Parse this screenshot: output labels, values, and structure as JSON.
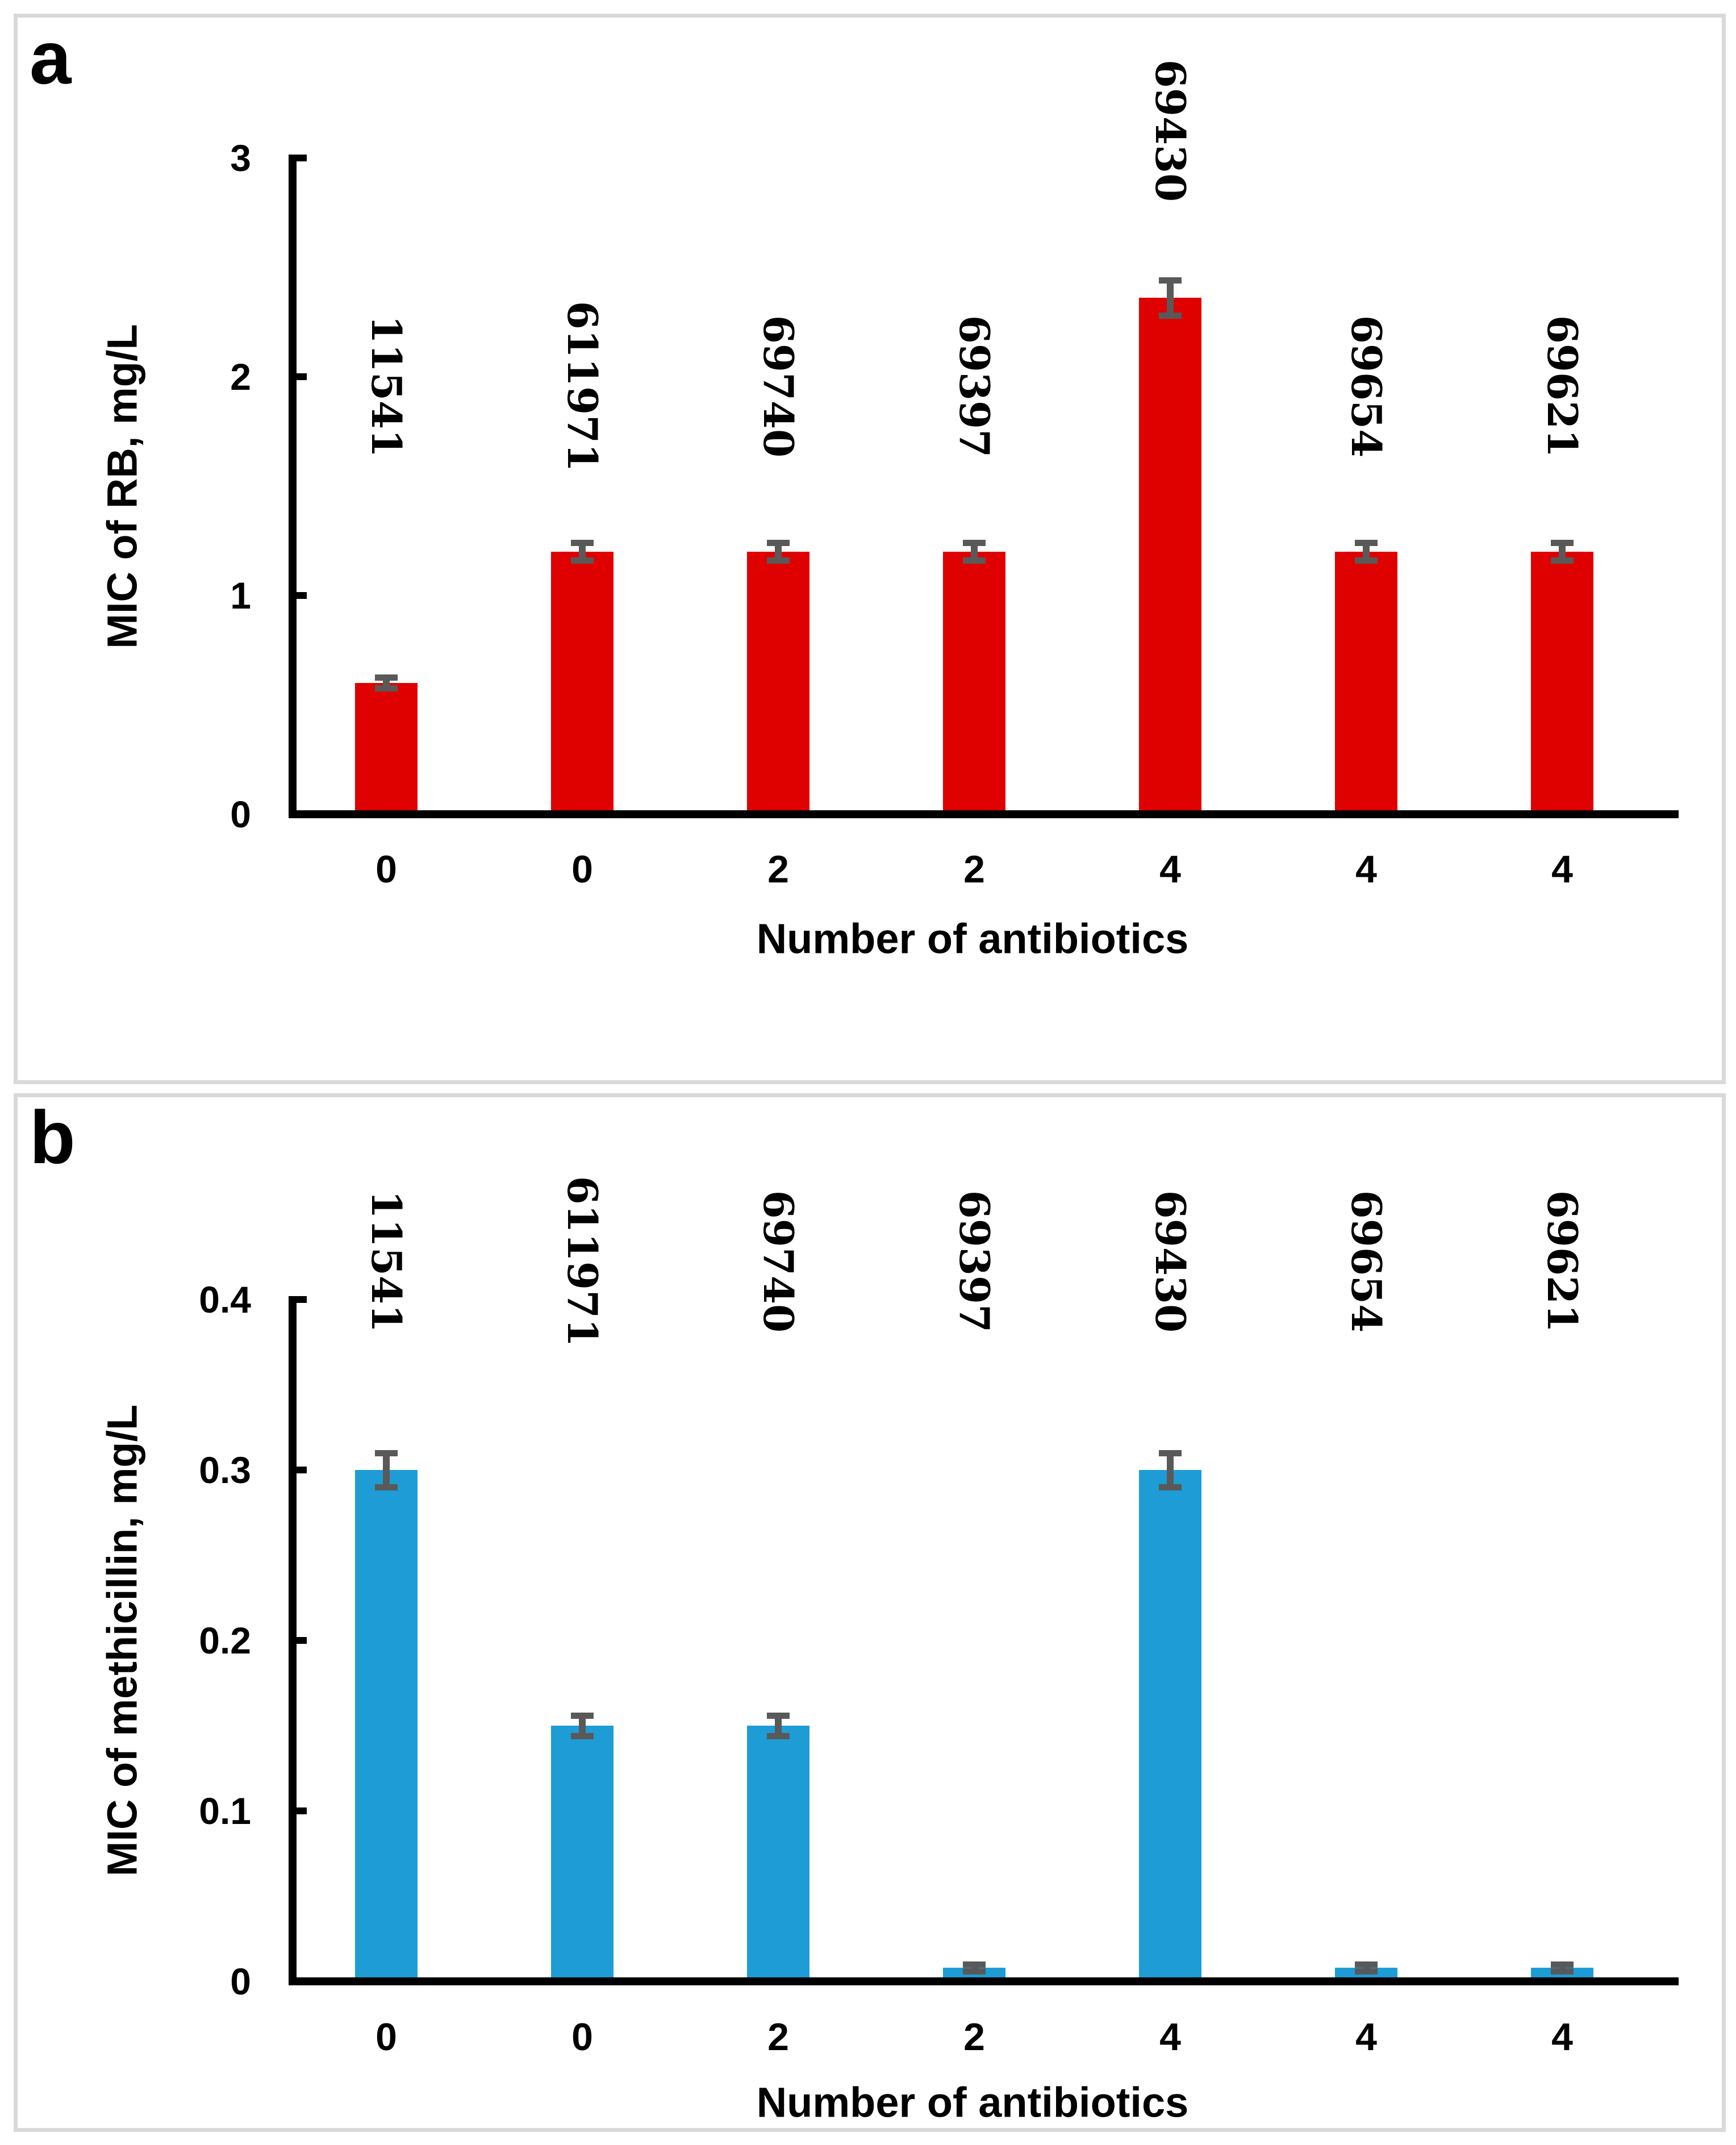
{
  "figure": {
    "background": "#ffffff",
    "panel_border_color": "#d9d9d9",
    "error_bar_color": "#595959"
  },
  "chart_data": [
    {
      "type": "bar",
      "panel_label": "a",
      "xlabel": "Number of antibiotics",
      "ylabel": "MIC of RB, mg/L",
      "categories": [
        "0",
        "0",
        "2",
        "2",
        "4",
        "4",
        "4"
      ],
      "bar_labels": [
        "11541",
        "611971",
        "69740",
        "69397",
        "69430",
        "69654",
        "69621"
      ],
      "values": [
        0.6,
        1.2,
        1.2,
        1.2,
        2.36,
        1.2,
        1.2
      ],
      "errors": [
        0.025,
        0.04,
        0.04,
        0.04,
        0.08,
        0.04,
        0.04
      ],
      "ylim": [
        0,
        3
      ],
      "ytick_labels": [
        "0",
        "1",
        "2",
        "3"
      ],
      "ytick_values": [
        0,
        1,
        2,
        3
      ],
      "bar_color": "#df0000",
      "grid": false,
      "legend": false
    },
    {
      "type": "bar",
      "panel_label": "b",
      "xlabel": "Number of antibiotics",
      "ylabel": "MIC of methicillin, mg/L",
      "categories": [
        "0",
        "0",
        "2",
        "2",
        "4",
        "4",
        "4"
      ],
      "bar_labels": [
        "11541",
        "611971",
        "69740",
        "69397",
        "69430",
        "69654",
        "69621"
      ],
      "values": [
        0.3,
        0.15,
        0.15,
        0.008,
        0.3,
        0.008,
        0.008
      ],
      "errors": [
        0.01,
        0.006,
        0.006,
        0.002,
        0.01,
        0.002,
        0.002
      ],
      "ylim": [
        0,
        0.4
      ],
      "ytick_labels": [
        "0",
        "0.1",
        "0.2",
        "0.3",
        "0.4"
      ],
      "ytick_values": [
        0,
        0.1,
        0.2,
        0.3,
        0.4
      ],
      "bar_color": "#1e9cd6",
      "grid": false,
      "legend": false
    }
  ]
}
